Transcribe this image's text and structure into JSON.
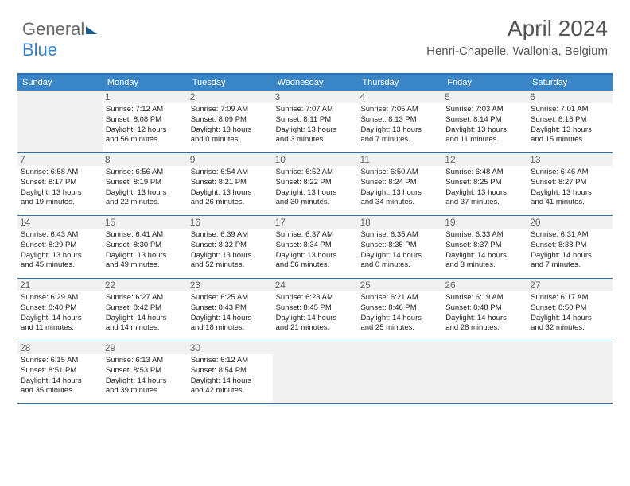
{
  "logo": {
    "part1": "General",
    "part2": "Blue"
  },
  "title": "April 2024",
  "location": "Henri-Chapelle, Wallonia, Belgium",
  "days_of_week": [
    "Sunday",
    "Monday",
    "Tuesday",
    "Wednesday",
    "Thursday",
    "Friday",
    "Saturday"
  ],
  "colors": {
    "header_bg": "#3a85c6",
    "border": "#2a71b0",
    "daynum_bg": "#f1f1f1",
    "empty_bg": "#f1f1f1",
    "text": "#222222",
    "muted": "#6b6b6b"
  },
  "weeks": [
    [
      {
        "empty": true
      },
      {
        "num": "1",
        "sunrise": "Sunrise: 7:12 AM",
        "sunset": "Sunset: 8:08 PM",
        "daylight1": "Daylight: 12 hours",
        "daylight2": "and 56 minutes."
      },
      {
        "num": "2",
        "sunrise": "Sunrise: 7:09 AM",
        "sunset": "Sunset: 8:09 PM",
        "daylight1": "Daylight: 13 hours",
        "daylight2": "and 0 minutes."
      },
      {
        "num": "3",
        "sunrise": "Sunrise: 7:07 AM",
        "sunset": "Sunset: 8:11 PM",
        "daylight1": "Daylight: 13 hours",
        "daylight2": "and 3 minutes."
      },
      {
        "num": "4",
        "sunrise": "Sunrise: 7:05 AM",
        "sunset": "Sunset: 8:13 PM",
        "daylight1": "Daylight: 13 hours",
        "daylight2": "and 7 minutes."
      },
      {
        "num": "5",
        "sunrise": "Sunrise: 7:03 AM",
        "sunset": "Sunset: 8:14 PM",
        "daylight1": "Daylight: 13 hours",
        "daylight2": "and 11 minutes."
      },
      {
        "num": "6",
        "sunrise": "Sunrise: 7:01 AM",
        "sunset": "Sunset: 8:16 PM",
        "daylight1": "Daylight: 13 hours",
        "daylight2": "and 15 minutes."
      }
    ],
    [
      {
        "num": "7",
        "sunrise": "Sunrise: 6:58 AM",
        "sunset": "Sunset: 8:17 PM",
        "daylight1": "Daylight: 13 hours",
        "daylight2": "and 19 minutes."
      },
      {
        "num": "8",
        "sunrise": "Sunrise: 6:56 AM",
        "sunset": "Sunset: 8:19 PM",
        "daylight1": "Daylight: 13 hours",
        "daylight2": "and 22 minutes."
      },
      {
        "num": "9",
        "sunrise": "Sunrise: 6:54 AM",
        "sunset": "Sunset: 8:21 PM",
        "daylight1": "Daylight: 13 hours",
        "daylight2": "and 26 minutes."
      },
      {
        "num": "10",
        "sunrise": "Sunrise: 6:52 AM",
        "sunset": "Sunset: 8:22 PM",
        "daylight1": "Daylight: 13 hours",
        "daylight2": "and 30 minutes."
      },
      {
        "num": "11",
        "sunrise": "Sunrise: 6:50 AM",
        "sunset": "Sunset: 8:24 PM",
        "daylight1": "Daylight: 13 hours",
        "daylight2": "and 34 minutes."
      },
      {
        "num": "12",
        "sunrise": "Sunrise: 6:48 AM",
        "sunset": "Sunset: 8:25 PM",
        "daylight1": "Daylight: 13 hours",
        "daylight2": "and 37 minutes."
      },
      {
        "num": "13",
        "sunrise": "Sunrise: 6:46 AM",
        "sunset": "Sunset: 8:27 PM",
        "daylight1": "Daylight: 13 hours",
        "daylight2": "and 41 minutes."
      }
    ],
    [
      {
        "num": "14",
        "sunrise": "Sunrise: 6:43 AM",
        "sunset": "Sunset: 8:29 PM",
        "daylight1": "Daylight: 13 hours",
        "daylight2": "and 45 minutes."
      },
      {
        "num": "15",
        "sunrise": "Sunrise: 6:41 AM",
        "sunset": "Sunset: 8:30 PM",
        "daylight1": "Daylight: 13 hours",
        "daylight2": "and 49 minutes."
      },
      {
        "num": "16",
        "sunrise": "Sunrise: 6:39 AM",
        "sunset": "Sunset: 8:32 PM",
        "daylight1": "Daylight: 13 hours",
        "daylight2": "and 52 minutes."
      },
      {
        "num": "17",
        "sunrise": "Sunrise: 6:37 AM",
        "sunset": "Sunset: 8:34 PM",
        "daylight1": "Daylight: 13 hours",
        "daylight2": "and 56 minutes."
      },
      {
        "num": "18",
        "sunrise": "Sunrise: 6:35 AM",
        "sunset": "Sunset: 8:35 PM",
        "daylight1": "Daylight: 14 hours",
        "daylight2": "and 0 minutes."
      },
      {
        "num": "19",
        "sunrise": "Sunrise: 6:33 AM",
        "sunset": "Sunset: 8:37 PM",
        "daylight1": "Daylight: 14 hours",
        "daylight2": "and 3 minutes."
      },
      {
        "num": "20",
        "sunrise": "Sunrise: 6:31 AM",
        "sunset": "Sunset: 8:38 PM",
        "daylight1": "Daylight: 14 hours",
        "daylight2": "and 7 minutes."
      }
    ],
    [
      {
        "num": "21",
        "sunrise": "Sunrise: 6:29 AM",
        "sunset": "Sunset: 8:40 PM",
        "daylight1": "Daylight: 14 hours",
        "daylight2": "and 11 minutes."
      },
      {
        "num": "22",
        "sunrise": "Sunrise: 6:27 AM",
        "sunset": "Sunset: 8:42 PM",
        "daylight1": "Daylight: 14 hours",
        "daylight2": "and 14 minutes."
      },
      {
        "num": "23",
        "sunrise": "Sunrise: 6:25 AM",
        "sunset": "Sunset: 8:43 PM",
        "daylight1": "Daylight: 14 hours",
        "daylight2": "and 18 minutes."
      },
      {
        "num": "24",
        "sunrise": "Sunrise: 6:23 AM",
        "sunset": "Sunset: 8:45 PM",
        "daylight1": "Daylight: 14 hours",
        "daylight2": "and 21 minutes."
      },
      {
        "num": "25",
        "sunrise": "Sunrise: 6:21 AM",
        "sunset": "Sunset: 8:46 PM",
        "daylight1": "Daylight: 14 hours",
        "daylight2": "and 25 minutes."
      },
      {
        "num": "26",
        "sunrise": "Sunrise: 6:19 AM",
        "sunset": "Sunset: 8:48 PM",
        "daylight1": "Daylight: 14 hours",
        "daylight2": "and 28 minutes."
      },
      {
        "num": "27",
        "sunrise": "Sunrise: 6:17 AM",
        "sunset": "Sunset: 8:50 PM",
        "daylight1": "Daylight: 14 hours",
        "daylight2": "and 32 minutes."
      }
    ],
    [
      {
        "num": "28",
        "sunrise": "Sunrise: 6:15 AM",
        "sunset": "Sunset: 8:51 PM",
        "daylight1": "Daylight: 14 hours",
        "daylight2": "and 35 minutes."
      },
      {
        "num": "29",
        "sunrise": "Sunrise: 6:13 AM",
        "sunset": "Sunset: 8:53 PM",
        "daylight1": "Daylight: 14 hours",
        "daylight2": "and 39 minutes."
      },
      {
        "num": "30",
        "sunrise": "Sunrise: 6:12 AM",
        "sunset": "Sunset: 8:54 PM",
        "daylight1": "Daylight: 14 hours",
        "daylight2": "and 42 minutes."
      },
      {
        "empty": true
      },
      {
        "empty": true
      },
      {
        "empty": true
      },
      {
        "empty": true
      }
    ]
  ]
}
